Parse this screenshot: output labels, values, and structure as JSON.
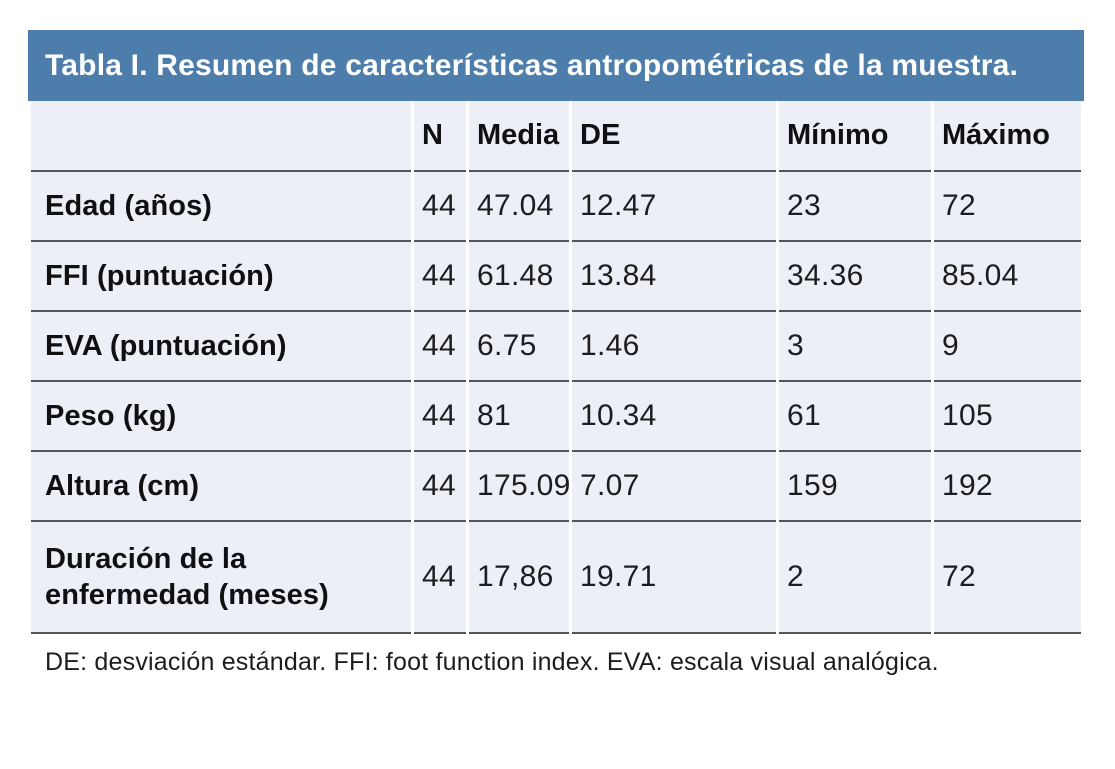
{
  "table": {
    "title": "Tabla I. Resumen de características antropométricas de la muestra.",
    "columns": {
      "label": "",
      "n": "N",
      "media": "Media",
      "de": "DE",
      "minimo": "Mínimo",
      "maximo": "Máximo"
    },
    "rows": [
      {
        "label": "Edad (años)",
        "n": "44",
        "media": "47.04",
        "de": "12.47",
        "minimo": "23",
        "maximo": "72"
      },
      {
        "label": "FFI (puntuación)",
        "n": "44",
        "media": "61.48",
        "de": "13.84",
        "minimo": "34.36",
        "maximo": "85.04"
      },
      {
        "label": "EVA (puntuación)",
        "n": "44",
        "media": "6.75",
        "de": "1.46",
        "minimo": "3",
        "maximo": "9"
      },
      {
        "label": "Peso (kg)",
        "n": "44",
        "media": "81",
        "de": "10.34",
        "minimo": "61",
        "maximo": "105"
      },
      {
        "label": "Altura (cm)",
        "n": "44",
        "media": "175.09",
        "de": "7.07",
        "minimo": "159",
        "maximo": "192"
      },
      {
        "label": "Duración de la enfermedad (meses)",
        "n": "44",
        "media": "17,86",
        "de": "19.71",
        "minimo": "2",
        "maximo": "72"
      }
    ],
    "footnote": "DE: desviación estándar. FFI: foot function index. EVA: escala visual analógica.",
    "colors": {
      "title_bar_bg": "#4c7dab",
      "title_text": "#ffffff",
      "row_bg": "#edeff6",
      "rule": "#54565e"
    }
  }
}
